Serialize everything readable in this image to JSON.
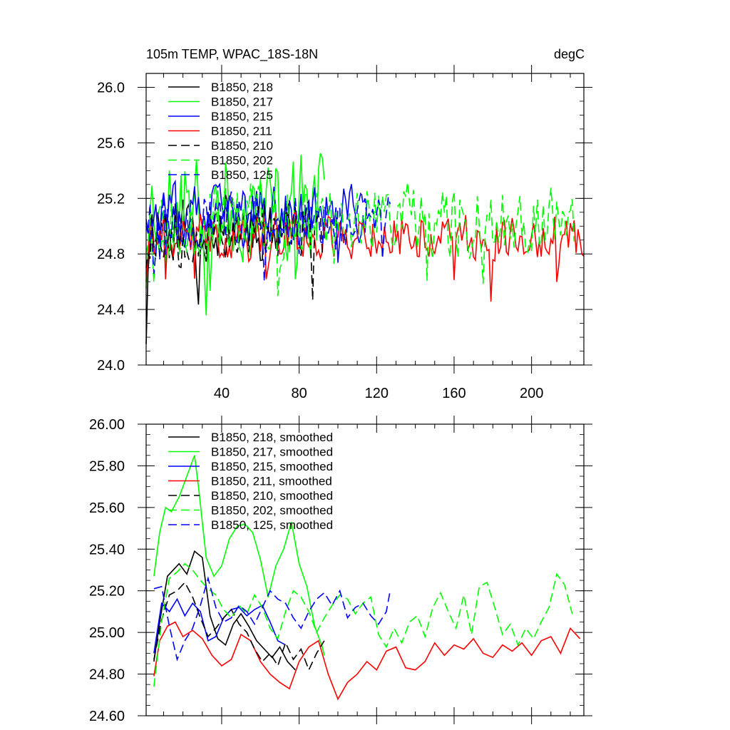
{
  "chart_data": [
    {
      "type": "line",
      "title": "105m TEMP, WPAC_18S-18N",
      "units": "degC",
      "xlabel": "",
      "ylabel": "",
      "xlim": [
        1,
        227
      ],
      "ylim": [
        24.0,
        26.1
      ],
      "x_ticks": [
        40,
        80,
        120,
        160,
        200
      ],
      "y_ticks": [
        "24.0",
        "24.4",
        "24.8",
        "25.2",
        "25.6",
        "26.0"
      ],
      "legend_position": "top-left",
      "series": [
        {
          "name": "B1850, 218",
          "color": "#000000",
          "dash": "solid",
          "length": 75,
          "base": 25.02,
          "amp": 0.22,
          "seed": 11,
          "start": 24.15
        },
        {
          "name": "B1850, 217",
          "color": "#00ff00",
          "dash": "solid",
          "length": 93,
          "base": 25.15,
          "amp": 0.32,
          "seed": 23,
          "start": 24.55
        },
        {
          "name": "B1850, 215",
          "color": "#0000ff",
          "dash": "solid",
          "length": 115,
          "base": 25.08,
          "amp": 0.18,
          "seed": 37,
          "start": 25.05
        },
        {
          "name": "B1850, 211",
          "color": "#ff0000",
          "dash": "solid",
          "length": 227,
          "base": 24.93,
          "amp": 0.14,
          "seed": 41,
          "start": 24.6
        },
        {
          "name": "B1850, 210",
          "color": "#000000",
          "dash": "dashed",
          "length": 93,
          "base": 24.96,
          "amp": 0.18,
          "seed": 53,
          "start": 24.7
        },
        {
          "name": "B1850, 202",
          "color": "#00ff00",
          "dash": "dashed",
          "length": 222,
          "base": 25.05,
          "amp": 0.22,
          "seed": 67,
          "start": 24.8
        },
        {
          "name": "B1850, 125",
          "color": "#0000ff",
          "dash": "dashed",
          "length": 127,
          "base": 25.04,
          "amp": 0.16,
          "seed": 79,
          "start": 25.0
        }
      ]
    },
    {
      "type": "line",
      "title": "",
      "xlabel": "",
      "ylabel": "",
      "xlim": [
        1,
        227
      ],
      "ylim": [
        24.6,
        26.0
      ],
      "y_ticks": [
        "24.60",
        "24.80",
        "25.00",
        "25.20",
        "25.40",
        "25.60",
        "25.80",
        "26.00"
      ],
      "legend_position": "top-left",
      "series": [
        {
          "name": "B1850, 218, smoothed",
          "color": "#000000",
          "dash": "solid",
          "x": [
            5,
            8,
            12,
            18,
            22,
            26,
            30,
            34,
            38,
            42,
            46,
            50,
            54,
            58,
            62,
            66,
            70,
            74,
            78
          ],
          "values": [
            24.86,
            25.05,
            25.27,
            25.33,
            25.28,
            25.39,
            25.36,
            25.08,
            24.97,
            24.94,
            25.04,
            25.09,
            25.03,
            24.96,
            24.92,
            24.88,
            24.93,
            24.86,
            24.82
          ]
        },
        {
          "name": "B1850, 217, smoothed",
          "color": "#00ff00",
          "dash": "solid",
          "x": [
            5,
            8,
            11,
            14,
            18,
            22,
            26,
            28,
            32,
            36,
            40,
            44,
            48,
            52,
            56,
            60,
            64,
            68,
            72,
            76,
            80,
            84,
            88,
            92,
            93
          ],
          "values": [
            25.27,
            25.48,
            25.6,
            25.58,
            25.65,
            25.75,
            25.85,
            25.7,
            25.36,
            25.27,
            25.32,
            25.45,
            25.51,
            25.52,
            25.48,
            25.35,
            25.17,
            25.32,
            25.4,
            25.53,
            25.33,
            25.22,
            25.03,
            24.93,
            24.89
          ]
        },
        {
          "name": "B1850, 215, smoothed",
          "color": "#0000ff",
          "dash": "solid",
          "x": [
            5,
            9,
            13,
            17,
            21,
            25,
            29,
            33,
            37,
            41,
            45,
            49,
            53,
            57,
            61,
            65,
            69,
            73
          ],
          "values": [
            24.9,
            25.14,
            25.1,
            25.16,
            25.08,
            25.14,
            25.1,
            24.96,
            24.98,
            25.07,
            25.11,
            25.12,
            25.08,
            25.11,
            25.13,
            25.05,
            24.96,
            24.94
          ]
        },
        {
          "name": "B1850, 211, smoothed",
          "color": "#ff0000",
          "dash": "solid",
          "x": [
            5,
            8,
            12,
            16,
            20,
            25,
            30,
            35,
            40,
            45,
            50,
            55,
            60,
            65,
            70,
            75,
            80,
            85,
            90,
            95,
            100,
            105,
            110,
            115,
            120,
            125,
            130,
            135,
            140,
            145,
            150,
            155,
            160,
            165,
            170,
            175,
            180,
            185,
            190,
            195,
            200,
            205,
            210,
            215,
            220,
            223,
            225
          ],
          "values": [
            24.79,
            24.96,
            25.03,
            25.05,
            24.98,
            25.01,
            24.97,
            24.89,
            24.84,
            24.87,
            24.99,
            24.96,
            24.86,
            24.8,
            24.76,
            24.73,
            24.86,
            24.93,
            24.96,
            24.8,
            24.68,
            24.76,
            24.8,
            24.86,
            24.82,
            24.91,
            24.93,
            24.83,
            24.82,
            24.86,
            24.95,
            24.89,
            24.94,
            24.92,
            24.97,
            24.9,
            24.88,
            24.94,
            24.91,
            24.95,
            24.89,
            24.96,
            24.98,
            24.9,
            25.02,
            24.99,
            24.97
          ]
        },
        {
          "name": "B1850, 210, smoothed",
          "color": "#000000",
          "dash": "dashed",
          "x": [
            5,
            9,
            13,
            17,
            21,
            25,
            29,
            33,
            37,
            41,
            45,
            49,
            53,
            57,
            61,
            65,
            69,
            73,
            77,
            81,
            85,
            89,
            93
          ],
          "values": [
            24.87,
            25.06,
            25.18,
            25.2,
            25.24,
            25.17,
            25.07,
            24.98,
            25.02,
            25.07,
            25.11,
            25.04,
            25.0,
            24.92,
            24.86,
            24.9,
            24.84,
            24.95,
            24.87,
            24.92,
            24.82,
            24.9,
            24.96
          ]
        },
        {
          "name": "B1850, 202, smoothed",
          "color": "#00ff00",
          "dash": "dashed",
          "x": [
            5,
            9,
            13,
            17,
            21,
            25,
            29,
            33,
            37,
            41,
            45,
            49,
            53,
            57,
            61,
            65,
            69,
            73,
            77,
            81,
            85,
            89,
            93,
            97,
            101,
            105,
            109,
            113,
            117,
            121,
            125,
            129,
            133,
            137,
            141,
            145,
            149,
            153,
            157,
            161,
            165,
            169,
            173,
            177,
            181,
            185,
            189,
            193,
            197,
            201,
            205,
            209,
            213,
            217,
            221
          ],
          "values": [
            24.74,
            25.05,
            25.26,
            25.29,
            25.33,
            25.3,
            25.25,
            25.21,
            25.18,
            25.11,
            25.07,
            25.13,
            25.09,
            25.18,
            25.12,
            25.02,
            24.97,
            25.1,
            25.2,
            25.17,
            25.1,
            25.0,
            25.07,
            25.13,
            25.18,
            25.16,
            25.09,
            25.14,
            25.17,
            24.99,
            24.93,
            25.02,
            24.95,
            25.05,
            25.08,
            24.98,
            25.12,
            25.19,
            25.1,
            25.02,
            25.18,
            24.99,
            25.22,
            25.24,
            25.12,
            24.99,
            25.04,
            24.94,
            25.02,
            24.97,
            25.05,
            25.12,
            25.28,
            25.23,
            25.09
          ]
        },
        {
          "name": "B1850, 125, smoothed",
          "color": "#0000ff",
          "dash": "dashed",
          "x": [
            5,
            9,
            13,
            17,
            21,
            25,
            29,
            33,
            37,
            41,
            45,
            49,
            53,
            57,
            61,
            65,
            69,
            73,
            77,
            81,
            85,
            89,
            93,
            97,
            101,
            105,
            109,
            113,
            117,
            121,
            125,
            127
          ],
          "values": [
            25.21,
            25.22,
            25.03,
            24.87,
            24.96,
            25.02,
            25.13,
            25.26,
            25.12,
            25.05,
            25.07,
            25.13,
            25.1,
            25.04,
            25.12,
            25.2,
            25.16,
            25.14,
            25.07,
            25.02,
            25.1,
            25.16,
            25.19,
            25.13,
            25.2,
            25.07,
            25.12,
            25.14,
            25.08,
            25.04,
            25.1,
            25.2
          ]
        }
      ]
    }
  ]
}
